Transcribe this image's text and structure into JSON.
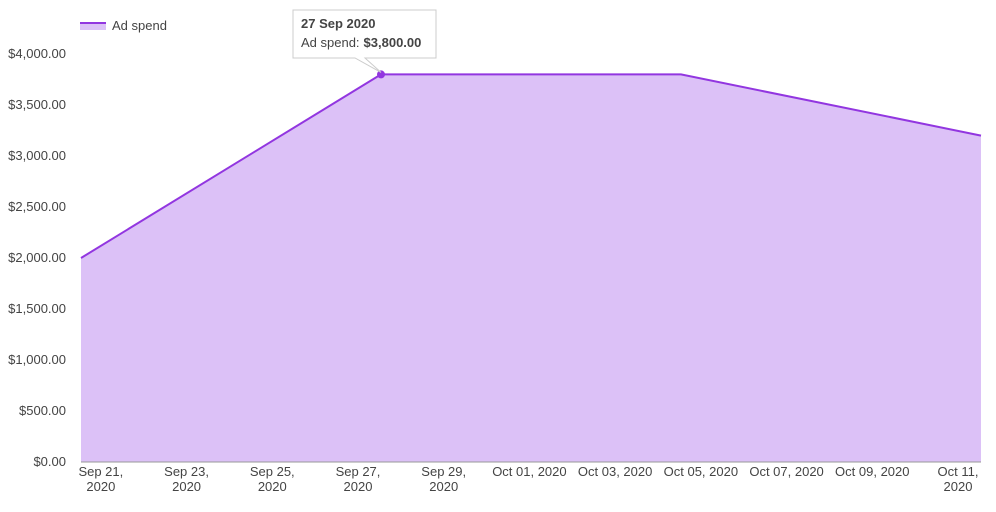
{
  "chart_data": {
    "type": "area",
    "x": [
      "2020-09-20",
      "2020-09-27",
      "2020-10-04",
      "2020-10-11"
    ],
    "series": [
      {
        "name": "Ad spend",
        "color": "#9236e0",
        "fill": "#dcc1f7",
        "values": [
          2000,
          3800,
          3800,
          3200
        ]
      }
    ],
    "xlim": [
      "2020-09-20",
      "2020-10-11"
    ],
    "xticks": [
      {
        "value": "2020-09-21",
        "label": "Sep 21, 2020"
      },
      {
        "value": "2020-09-23",
        "label": "Sep 23, 2020"
      },
      {
        "value": "2020-09-25",
        "label": "Sep 25, 2020"
      },
      {
        "value": "2020-09-27",
        "label": "Sep 27, 2020"
      },
      {
        "value": "2020-09-29",
        "label": "Sep 29, 2020"
      },
      {
        "value": "2020-10-01",
        "label": "Oct 01, 2020"
      },
      {
        "value": "2020-10-03",
        "label": "Oct 03, 2020"
      },
      {
        "value": "2020-10-05",
        "label": "Oct 05, 2020"
      },
      {
        "value": "2020-10-07",
        "label": "Oct 07, 2020"
      },
      {
        "value": "2020-10-09",
        "label": "Oct 09, 2020"
      },
      {
        "value": "2020-10-11",
        "label": "Oct 11, 2020"
      }
    ],
    "ylim": [
      0,
      4000
    ],
    "yticks": [
      {
        "value": 0,
        "label": "$0.00"
      },
      {
        "value": 500,
        "label": "$500.00"
      },
      {
        "value": 1000,
        "label": "$1,000.00"
      },
      {
        "value": 1500,
        "label": "$1,500.00"
      },
      {
        "value": 2000,
        "label": "$2,000.00"
      },
      {
        "value": 2500,
        "label": "$2,500.00"
      },
      {
        "value": 3000,
        "label": "$3,000.00"
      },
      {
        "value": 3500,
        "label": "$3,500.00"
      },
      {
        "value": 4000,
        "label": "$4,000.00"
      }
    ],
    "legend": "top-left",
    "tooltip": {
      "title": "27 Sep 2020",
      "text": "Ad spend:",
      "value": 3800,
      "value_label": "$3,800.00"
    }
  }
}
